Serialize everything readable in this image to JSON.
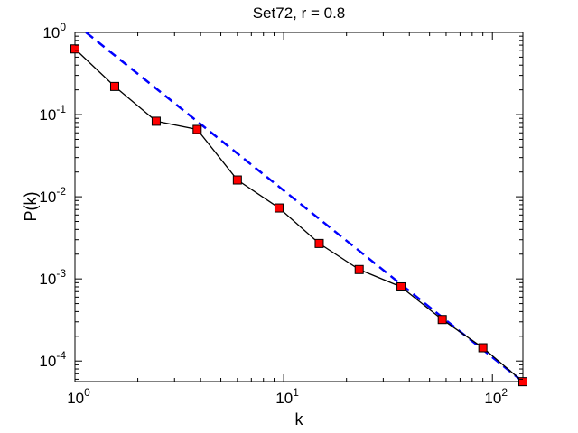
{
  "chart_data": {
    "type": "line",
    "title": "Set72, r = 0.8",
    "xlabel": "k",
    "ylabel": "P(k)",
    "xscale": "log",
    "yscale": "log",
    "xlim": [
      1,
      140
    ],
    "ylim": [
      5.62e-05,
      1
    ],
    "grid": false,
    "x_ticks": [
      {
        "value": 1,
        "base": "10",
        "exp": "0"
      },
      {
        "value": 10,
        "base": "10",
        "exp": "1"
      },
      {
        "value": 100,
        "base": "10",
        "exp": "2"
      }
    ],
    "y_ticks": [
      {
        "value": 1,
        "base": "10",
        "exp": "0"
      },
      {
        "value": 0.1,
        "base": "10",
        "exp": "-1"
      },
      {
        "value": 0.01,
        "base": "10",
        "exp": "-2"
      },
      {
        "value": 0.001,
        "base": "10",
        "exp": "-3"
      },
      {
        "value": 0.0001,
        "base": "10",
        "exp": "-4"
      }
    ],
    "series": [
      {
        "style": "black solid line, red square markers",
        "color": "#000000",
        "marker_color": "#ff0000",
        "x": [
          1.0,
          1.55,
          2.45,
          3.85,
          6.0,
          9.5,
          14.8,
          23.0,
          36.5,
          57.5,
          90.0,
          140.0
        ],
        "y": [
          0.63,
          0.22,
          0.083,
          0.066,
          0.016,
          0.0073,
          0.0027,
          0.0013,
          0.0008,
          0.00032,
          0.000145,
          5.6e-05
        ]
      },
      {
        "style": "blue dashed fit line",
        "color": "#0000ff",
        "x": [
          1.13,
          140.0
        ],
        "y": [
          1.0,
          5.6e-05
        ]
      }
    ]
  }
}
